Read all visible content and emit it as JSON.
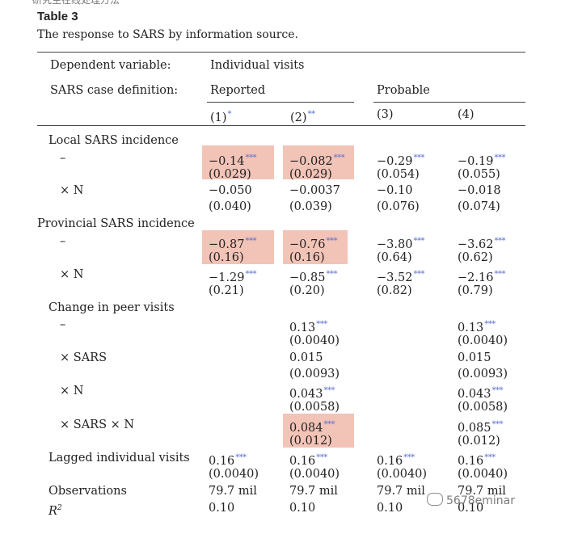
{
  "top_fragment": "研究生在线处理方法",
  "table": {
    "title": "Table 3",
    "caption": "The response to SARS by information source.",
    "header": {
      "dependent_variable_label": "Dependent variable:",
      "dependent_variable_value": "Individual visits",
      "definition_label": "SARS case definition:",
      "group_reported": "Reported",
      "group_probable": "Probable",
      "col1": "(1)",
      "col2": "(2)",
      "col3": "(3)",
      "col4": "(4)",
      "col1_stars": "*",
      "col2_stars": "**"
    },
    "rows": {
      "local": "Local SARS incidence",
      "dash": "–",
      "times_n": "× N",
      "provincial": "Provincial SARS incidence",
      "peer": "Change in peer visits",
      "times_sars": "× SARS",
      "times_sars_n": "× SARS × N",
      "lagged": "Lagged individual visits",
      "observations": "Observations",
      "r2": "R"
    },
    "cells": {
      "local_c1": "−0.14",
      "local_c1_se": "(0.029)",
      "local_c1_s": "***",
      "local_c2": "−0.082",
      "local_c2_se": "(0.029)",
      "local_c2_s": "***",
      "local_c3": "−0.29",
      "local_c3_se": "(0.054)",
      "local_c3_s": "***",
      "local_c4": "−0.19",
      "local_c4_se": "(0.055)",
      "local_c4_s": "***",
      "localn_c1": "−0.050",
      "localn_c1_se": "(0.040)",
      "localn_c2": "−0.0037",
      "localn_c2_se": "(0.039)",
      "localn_c3": "−0.10",
      "localn_c3_se": "(0.076)",
      "localn_c4": "−0.018",
      "localn_c4_se": "(0.074)",
      "prov_c1": "−0.87",
      "prov_c1_se": "(0.16)",
      "prov_c1_s": "***",
      "prov_c2": "−0.76",
      "prov_c2_se": "(0.16)",
      "prov_c2_s": "***",
      "prov_c3": "−3.80",
      "prov_c3_se": "(0.64)",
      "prov_c3_s": "***",
      "prov_c4": "−3.62",
      "prov_c4_se": "(0.62)",
      "prov_c4_s": "***",
      "provn_c1": "−1.29",
      "provn_c1_se": "(0.21)",
      "provn_c1_s": "***",
      "provn_c2": "−0.85",
      "provn_c2_se": "(0.20)",
      "provn_c2_s": "***",
      "provn_c3": "−3.52",
      "provn_c3_se": "(0.82)",
      "provn_c3_s": "***",
      "provn_c4": "−2.16",
      "provn_c4_se": "(0.79)",
      "provn_c4_s": "***",
      "peer_c2": "0.13",
      "peer_c2_se": "(0.0040)",
      "peer_c2_s": "***",
      "peer_c4": "0.13",
      "peer_c4_se": "(0.0040)",
      "peer_c4_s": "***",
      "peers_c2": "0.015",
      "peers_c2_se": "(0.0093)",
      "peers_c4": "0.015",
      "peers_c4_se": "(0.0093)",
      "peern_c2": "0.043",
      "peern_c2_se": "(0.0058)",
      "peern_c2_s": "***",
      "peern_c4": "0.043",
      "peern_c4_se": "(0.0058)",
      "peern_c4_s": "***",
      "peersn_c2": "0.084",
      "peersn_c2_se": "(0.012)",
      "peersn_c2_s": "***",
      "peersn_c4": "0.085",
      "peersn_c4_se": "(0.012)",
      "peersn_c4_s": "***",
      "lag_c1": "0.16",
      "lag_c1_se": "(0.0040)",
      "lag_c1_s": "***",
      "lag_c2": "0.16",
      "lag_c2_se": "(0.0040)",
      "lag_c2_s": "***",
      "lag_c3": "0.16",
      "lag_c3_se": "(0.0040)",
      "lag_c3_s": "***",
      "lag_c4": "0.16",
      "lag_c4_se": "(0.0040)",
      "lag_c4_s": "***",
      "obs_c1": "79.7 mil",
      "obs_c2": "79.7 mil",
      "obs_c3": "79.7 mil",
      "obs_c4": "79.7 mil",
      "r2_c1": "0.10",
      "r2_c2": "0.10",
      "r2_c3": "0.10",
      "r2_c4": "0.10"
    }
  },
  "watermark": "5678eminar",
  "colors": {
    "highlight": "#f2c3b7",
    "stars": "#5a6fd0"
  }
}
